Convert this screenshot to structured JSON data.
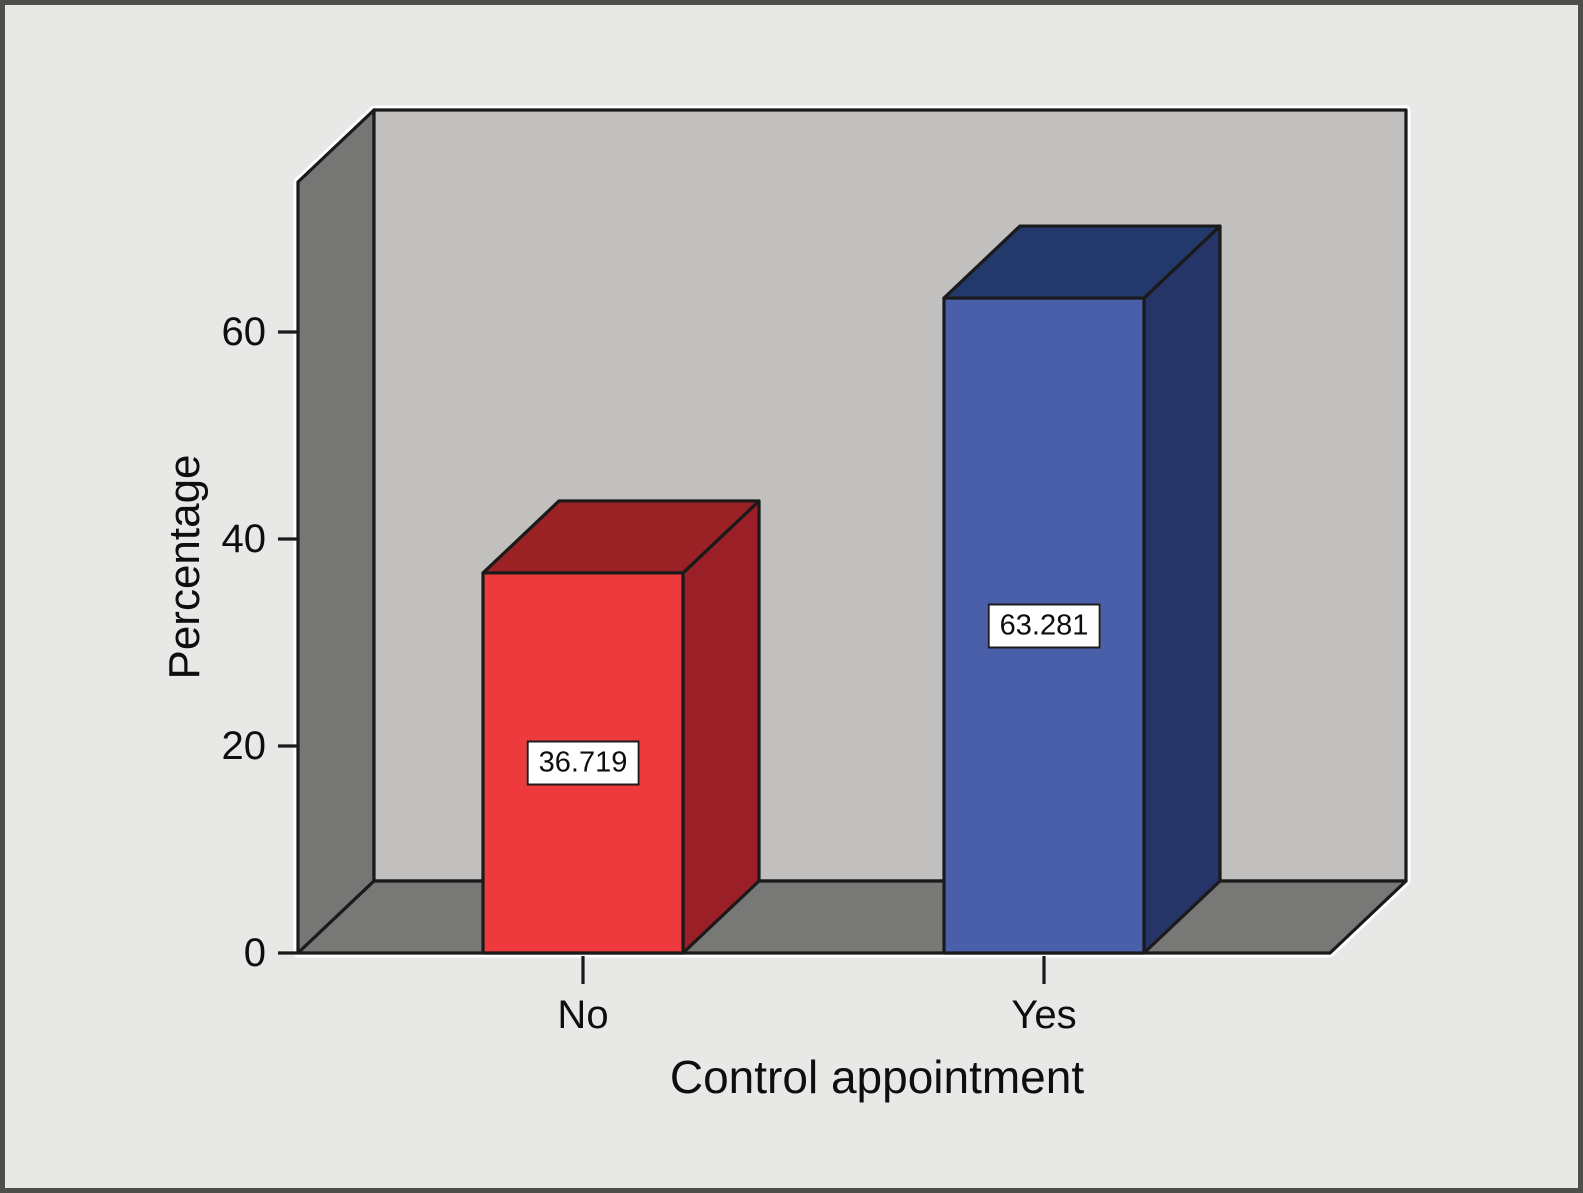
{
  "window": {
    "background": "#e8e8e6",
    "frame_border_color": "#4e4e4d"
  },
  "chart_data": {
    "type": "bar",
    "style": "3d-column",
    "title": "",
    "xlabel": "Control appointment",
    "ylabel": "Percentage",
    "categories": [
      "No",
      "Yes"
    ],
    "values": [
      36.719,
      63.281
    ],
    "value_labels": [
      "36.719",
      "63.281"
    ],
    "yticks": [
      0,
      20,
      40,
      60
    ],
    "ytick_labels": [
      "0",
      "20",
      "40",
      "60"
    ],
    "ylim": [
      0,
      74.5
    ],
    "grid": false,
    "legend": "none",
    "bar_colors": [
      {
        "category": "No",
        "front": "#ee393d",
        "top": "#9a2124",
        "side": "#9a1f27"
      },
      {
        "category": "Yes",
        "front": "#4a5fa9",
        "top": "#24396b",
        "side": "#263467"
      }
    ],
    "panel": {
      "back_wall": "#c1c0bf",
      "floor": "#787877",
      "left_wall": "#767675",
      "outline": "#1a1a1a",
      "halo": "#ffffff",
      "value_box_bg": "#ffffff",
      "value_box_border": "#1c1c1c"
    }
  }
}
